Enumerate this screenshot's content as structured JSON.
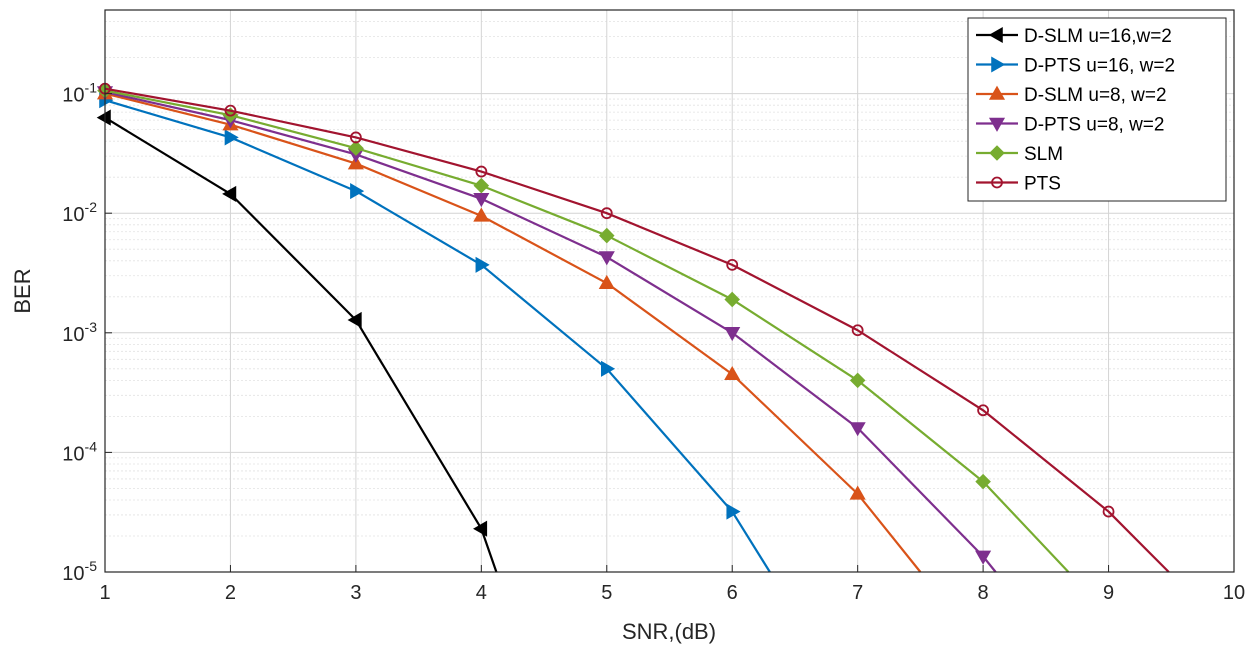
{
  "chart_data": {
    "type": "line",
    "title": "",
    "xlabel": "SNR,(dB)",
    "ylabel": "BER",
    "xlim": [
      1,
      10
    ],
    "ylim": [
      1e-05,
      0.5
    ],
    "yscale": "log",
    "grid": true,
    "minor_grid": true,
    "legend_position": "top-right",
    "x_ticks": [
      "1",
      "2",
      "3",
      "4",
      "5",
      "6",
      "7",
      "8",
      "9",
      "10"
    ],
    "y_ticks": [
      {
        "base": "10",
        "exp": "-5",
        "value": 1e-05
      },
      {
        "base": "10",
        "exp": "-4",
        "value": 0.0001
      },
      {
        "base": "10",
        "exp": "-3",
        "value": 0.001
      },
      {
        "base": "10",
        "exp": "-2",
        "value": 0.01
      },
      {
        "base": "10",
        "exp": "-1",
        "value": 0.1
      }
    ],
    "series": [
      {
        "name": "D-SLM u=16,w=2",
        "color": "#000000",
        "marker": "triangle-left",
        "x": [
          1,
          2,
          3,
          4,
          4.12
        ],
        "y": [
          0.063,
          0.0145,
          0.00128,
          2.3e-05,
          1e-05
        ],
        "marker_count": 4
      },
      {
        "name": "D-PTS u=16, w=2",
        "color": "#0072BD",
        "marker": "triangle-right",
        "x": [
          1,
          2,
          3,
          4,
          5,
          6,
          6.3
        ],
        "y": [
          0.088,
          0.043,
          0.0153,
          0.0037,
          0.0005,
          3.2e-05,
          1e-05
        ],
        "marker_count": 6
      },
      {
        "name": "D-SLM u=8, w=2",
        "color": "#D95319",
        "marker": "triangle-up",
        "x": [
          1,
          2,
          3,
          4,
          5,
          6,
          7,
          7.5
        ],
        "y": [
          0.1,
          0.055,
          0.026,
          0.0095,
          0.0026,
          0.00045,
          4.5e-05,
          1e-05
        ],
        "marker_count": 7
      },
      {
        "name": "D-PTS u=8, w=2",
        "color": "#7E2F8E",
        "marker": "triangle-down",
        "x": [
          1,
          2,
          3,
          4,
          5,
          6,
          7,
          8,
          8.1
        ],
        "y": [
          0.103,
          0.06,
          0.031,
          0.0132,
          0.0043,
          0.001,
          0.00016,
          1.35e-05,
          1e-05
        ],
        "marker_count": 8
      },
      {
        "name": "SLM",
        "color": "#77AC30",
        "marker": "diamond",
        "x": [
          1,
          2,
          3,
          4,
          5,
          6,
          7,
          8,
          8.68
        ],
        "y": [
          0.106,
          0.066,
          0.035,
          0.017,
          0.0065,
          0.0019,
          0.0004,
          5.7e-05,
          1e-05
        ],
        "marker_count": 8
      },
      {
        "name": "PTS",
        "color": "#A2142F",
        "marker": "circle",
        "x": [
          1,
          2,
          3,
          4,
          5,
          6,
          7,
          8,
          9,
          9.48
        ],
        "y": [
          0.11,
          0.072,
          0.043,
          0.0223,
          0.01,
          0.0037,
          0.00105,
          0.000225,
          3.2e-05,
          1e-05
        ],
        "marker_count": 9
      }
    ]
  }
}
